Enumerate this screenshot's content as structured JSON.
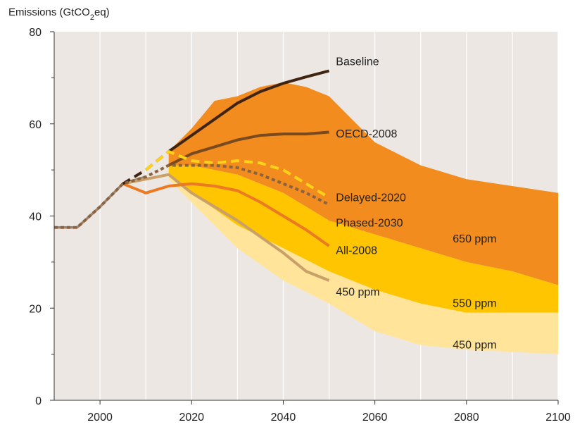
{
  "chart_data": {
    "type": "area",
    "ylabel": {
      "prefix": "Emissions (GtCO",
      "sub": "2",
      "suffix": "eq)"
    },
    "xlim": [
      1990,
      2100
    ],
    "ylim": [
      0,
      80
    ],
    "x_ticks": [
      2000,
      2020,
      2040,
      2060,
      2080,
      2100
    ],
    "y_ticks": [
      0,
      20,
      40,
      60,
      80
    ],
    "grid": "vertical",
    "colors": {
      "plot_bg": "#ece7e2",
      "band_650": "#f28c1e",
      "band_550": "#ffc500",
      "band_450": "#ffe49a",
      "baseline": "#3f2412",
      "oecd": "#7a4a1f",
      "delayed": "#ffd21a",
      "phased": "#8a6440",
      "all2008": "#ec7a22",
      "s450": "#c8a068",
      "history": "#9a8470"
    },
    "bands": [
      {
        "name": "650 ppm",
        "label": "650 ppm",
        "upper": [
          [
            2015,
            54
          ],
          [
            2020,
            59
          ],
          [
            2025,
            65
          ],
          [
            2030,
            66
          ],
          [
            2035,
            68
          ],
          [
            2040,
            69
          ],
          [
            2045,
            68
          ],
          [
            2050,
            66
          ],
          [
            2055,
            61
          ],
          [
            2060,
            56
          ],
          [
            2070,
            51
          ],
          [
            2080,
            48
          ],
          [
            2090,
            46.5
          ],
          [
            2100,
            45
          ]
        ],
        "lower": [
          [
            2100,
            25
          ],
          [
            2090,
            28
          ],
          [
            2080,
            30
          ],
          [
            2070,
            33
          ],
          [
            2060,
            36
          ],
          [
            2050,
            39
          ],
          [
            2045,
            42
          ],
          [
            2040,
            45
          ],
          [
            2030,
            49
          ],
          [
            2020,
            51
          ],
          [
            2015,
            51
          ]
        ]
      },
      {
        "name": "550 ppm",
        "label": "550 ppm",
        "upper": [
          [
            2015,
            51
          ],
          [
            2020,
            51
          ],
          [
            2030,
            49
          ],
          [
            2040,
            45
          ],
          [
            2045,
            42
          ],
          [
            2050,
            39
          ],
          [
            2060,
            36
          ],
          [
            2070,
            33
          ],
          [
            2080,
            30
          ],
          [
            2090,
            28
          ],
          [
            2100,
            25
          ]
        ],
        "lower": [
          [
            2100,
            19
          ],
          [
            2090,
            19
          ],
          [
            2080,
            19
          ],
          [
            2070,
            21
          ],
          [
            2060,
            24
          ],
          [
            2050,
            28
          ],
          [
            2040,
            33
          ],
          [
            2030,
            38
          ],
          [
            2020,
            45
          ],
          [
            2015,
            49
          ]
        ]
      },
      {
        "name": "450 ppm",
        "label": "450 ppm",
        "upper": [
          [
            2015,
            49
          ],
          [
            2020,
            45
          ],
          [
            2030,
            38
          ],
          [
            2040,
            33
          ],
          [
            2050,
            28
          ],
          [
            2060,
            24
          ],
          [
            2070,
            21
          ],
          [
            2080,
            19
          ],
          [
            2090,
            19
          ],
          [
            2100,
            19
          ]
        ],
        "lower": [
          [
            2100,
            10
          ],
          [
            2090,
            10.5
          ],
          [
            2080,
            11
          ],
          [
            2070,
            12
          ],
          [
            2060,
            15
          ],
          [
            2050,
            21
          ],
          [
            2040,
            26
          ],
          [
            2030,
            33
          ],
          [
            2020,
            43
          ],
          [
            2015,
            48
          ]
        ]
      }
    ],
    "series": [
      {
        "name": "History",
        "style": "solid",
        "label": "",
        "points": [
          [
            1990,
            37.5
          ],
          [
            1995,
            37.5
          ],
          [
            2000,
            42
          ],
          [
            2005,
            47
          ],
          [
            2010,
            48.5
          ]
        ]
      },
      {
        "name": "450 ppm",
        "style": "solid",
        "label": "450 ppm",
        "points": [
          [
            2005,
            47
          ],
          [
            2010,
            48
          ],
          [
            2015,
            49
          ],
          [
            2020,
            45
          ],
          [
            2025,
            42
          ],
          [
            2030,
            39
          ],
          [
            2035,
            35.5
          ],
          [
            2040,
            32
          ],
          [
            2045,
            28
          ],
          [
            2050,
            26
          ]
        ]
      },
      {
        "name": "All-2008",
        "style": "solid",
        "label": "All-2008",
        "points": [
          [
            2005,
            47
          ],
          [
            2010,
            45
          ],
          [
            2015,
            46.5
          ],
          [
            2020,
            47
          ],
          [
            2025,
            46.5
          ],
          [
            2030,
            45.5
          ],
          [
            2035,
            43
          ],
          [
            2040,
            40
          ],
          [
            2045,
            37
          ],
          [
            2050,
            33.5
          ]
        ]
      },
      {
        "name": "OECD-2008",
        "style": "solid",
        "label": "OECD-2008",
        "points": [
          [
            2015,
            51
          ],
          [
            2020,
            53.5
          ],
          [
            2025,
            55
          ],
          [
            2030,
            56.5
          ],
          [
            2035,
            57.5
          ],
          [
            2040,
            57.8
          ],
          [
            2045,
            57.8
          ],
          [
            2050,
            58.2
          ]
        ]
      },
      {
        "name": "Baseline",
        "style": "solid",
        "label": "Baseline",
        "points": [
          [
            2015,
            54
          ],
          [
            2020,
            57.5
          ],
          [
            2025,
            61
          ],
          [
            2030,
            64.5
          ],
          [
            2035,
            67
          ],
          [
            2040,
            68.8
          ],
          [
            2045,
            70.2
          ],
          [
            2050,
            71.5
          ]
        ]
      },
      {
        "name": "Baseline (early)",
        "style": "dashed",
        "label": "",
        "points": [
          [
            2005,
            47
          ],
          [
            2010,
            50
          ],
          [
            2015,
            54
          ]
        ]
      },
      {
        "name": "Delayed-2020",
        "style": "dashed",
        "label": "Delayed-2020",
        "points": [
          [
            2010,
            50
          ],
          [
            2015,
            54
          ],
          [
            2020,
            52
          ],
          [
            2025,
            51.5
          ],
          [
            2030,
            52
          ],
          [
            2035,
            51.5
          ],
          [
            2040,
            50
          ],
          [
            2045,
            47
          ],
          [
            2050,
            44
          ]
        ]
      },
      {
        "name": "Phased-2030",
        "style": "dotted",
        "label": "Phased-2030",
        "points": [
          [
            1990,
            37.5
          ],
          [
            1995,
            37.5
          ],
          [
            2000,
            42
          ],
          [
            2005,
            47
          ],
          [
            2010,
            48.5
          ],
          [
            2015,
            51
          ],
          [
            2020,
            51
          ],
          [
            2025,
            51
          ],
          [
            2030,
            50.5
          ],
          [
            2035,
            49
          ],
          [
            2040,
            47
          ],
          [
            2045,
            45
          ],
          [
            2050,
            42.5
          ]
        ]
      }
    ],
    "label_positions": {
      "Baseline": [
        2051.5,
        73.5
      ],
      "OECD-2008": [
        2051.5,
        57.8
      ],
      "Delayed-2020": [
        2051.5,
        44
      ],
      "Phased-2030": [
        2051.5,
        38.5
      ],
      "All-2008": [
        2051.5,
        32.5
      ],
      "450 ppm": [
        2051.5,
        23.5
      ],
      "band 650 ppm": [
        2077,
        35
      ],
      "band 550 ppm": [
        2077,
        21
      ],
      "band 450 ppm": [
        2077,
        12
      ]
    }
  }
}
